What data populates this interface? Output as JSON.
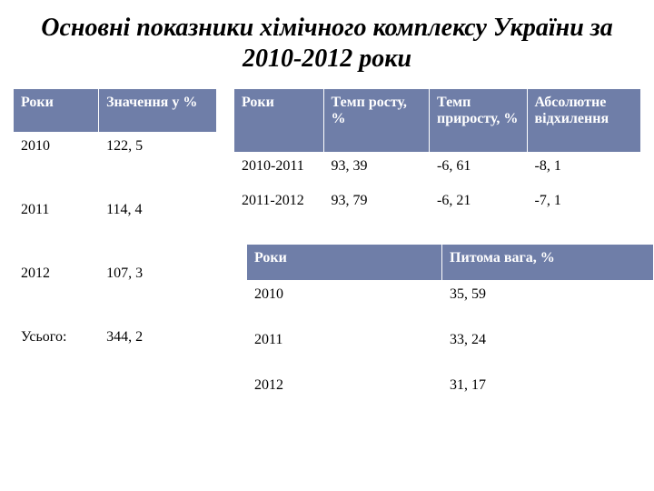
{
  "title": "Основні показники хімічного комплексу України за 2010-2012 роки",
  "colors": {
    "header_bg": "#6f7ea8",
    "header_fg": "#ffffff",
    "cell_bg": "#ffffff",
    "cell_fg": "#000000",
    "border": "#ffffff",
    "page_bg": "#ffffff"
  },
  "typography": {
    "title_fontsize": 28,
    "title_weight": "bold",
    "title_style": "italic",
    "cell_fontsize": 16,
    "font_family": "Georgia, Times New Roman, serif"
  },
  "table1": {
    "type": "table",
    "columns": [
      "Роки",
      "Значення у %"
    ],
    "rows": [
      [
        "2010",
        "122, 5"
      ],
      [
        "2011",
        "114, 4"
      ],
      [
        "2012",
        "107, 3"
      ],
      [
        "Усього:",
        "344, 2"
      ]
    ],
    "col_widths_pct": [
      42,
      58
    ]
  },
  "table2": {
    "type": "table",
    "columns": [
      "Роки",
      "Темп росту, %",
      "Темп приросту, %",
      "Абсолютне відхилення"
    ],
    "rows": [
      [
        "2010-2011",
        "93, 39",
        "-6, 61",
        "-8, 1"
      ],
      [
        "2011-2012",
        "93, 79",
        "-6, 21",
        "-7, 1"
      ]
    ],
    "col_widths_pct": [
      22,
      26,
      24,
      28
    ]
  },
  "table3": {
    "type": "table",
    "columns": [
      "Роки",
      "Питома вага, %"
    ],
    "rows": [
      [
        "2010",
        "35, 59"
      ],
      [
        "2011",
        "33, 24"
      ],
      [
        "2012",
        "31, 17"
      ]
    ],
    "col_widths_pct": [
      48,
      52
    ]
  }
}
